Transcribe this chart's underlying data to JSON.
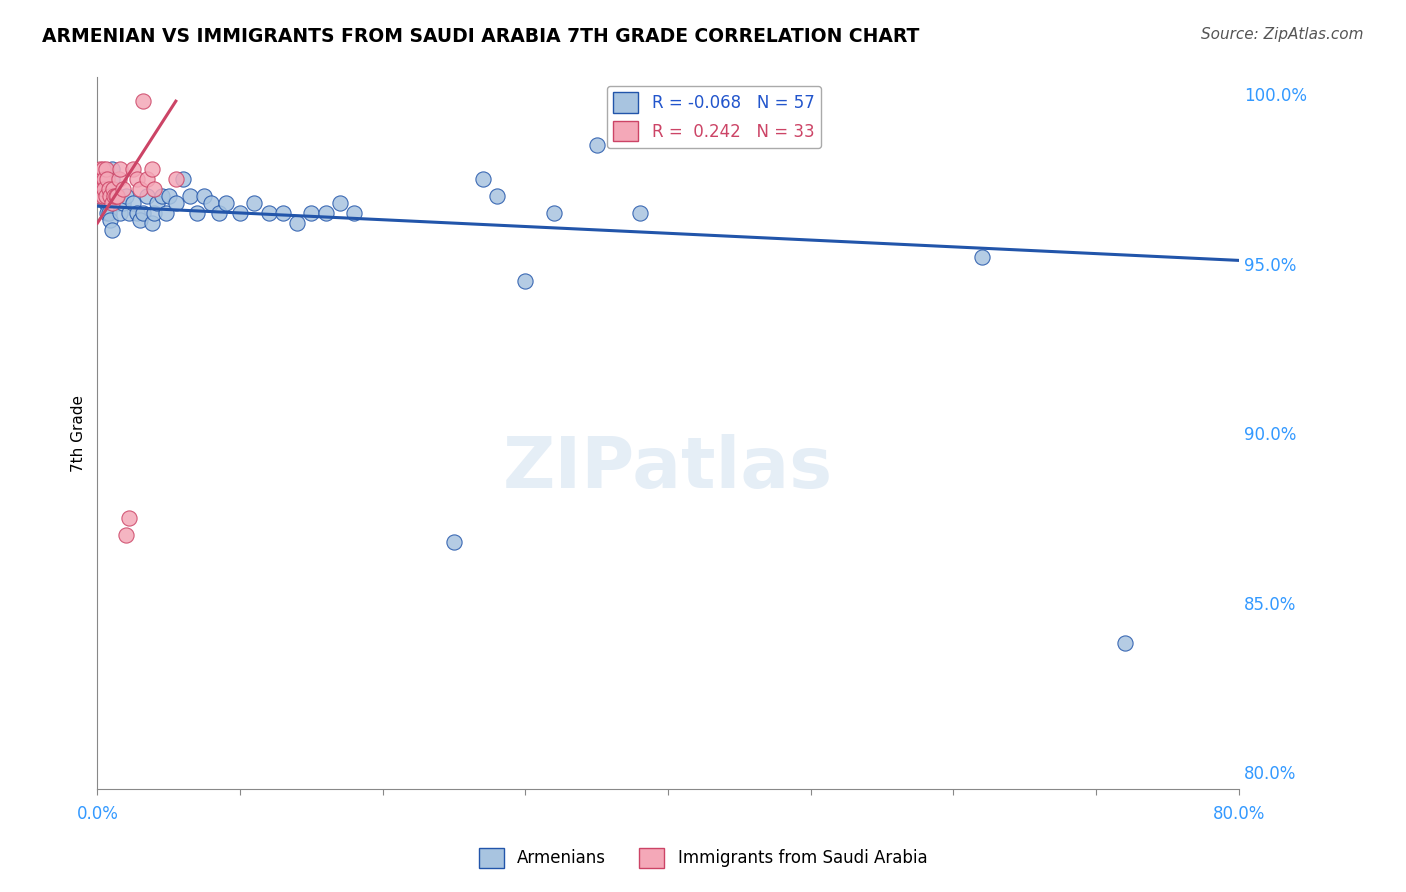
{
  "title": "ARMENIAN VS IMMIGRANTS FROM SAUDI ARABIA 7TH GRADE CORRELATION CHART",
  "source_text": "Source: ZipAtlas.com",
  "ylabel": "7th Grade",
  "watermark": "ZIPatlas",
  "legend_blue_r": "-0.068",
  "legend_blue_n": "57",
  "legend_pink_r": "0.242",
  "legend_pink_n": "33",
  "legend_blue_label": "Armenians",
  "legend_pink_label": "Immigrants from Saudi Arabia",
  "blue_color": "#a8c4e0",
  "pink_color": "#f4a8b8",
  "blue_edge_color": "#2255aa",
  "pink_edge_color": "#cc4466",
  "blue_line_color": "#2255aa",
  "pink_line_color": "#cc4466",
  "blue_r_color": "#2255cc",
  "pink_r_color": "#cc4466",
  "axis_color": "#3399ff",
  "grid_color": "#cccccc",
  "background_color": "#ffffff",
  "x_min": 0.0,
  "x_max": 0.8,
  "y_min": 0.795,
  "y_max": 1.005,
  "blue_scatter_x": [
    0.002,
    0.003,
    0.004,
    0.005,
    0.005,
    0.006,
    0.007,
    0.008,
    0.009,
    0.01,
    0.01,
    0.01,
    0.011,
    0.013,
    0.013,
    0.015,
    0.016,
    0.018,
    0.02,
    0.022,
    0.025,
    0.028,
    0.03,
    0.032,
    0.035,
    0.038,
    0.04,
    0.042,
    0.045,
    0.048,
    0.05,
    0.055,
    0.06,
    0.065,
    0.07,
    0.075,
    0.08,
    0.085,
    0.09,
    0.1,
    0.11,
    0.12,
    0.13,
    0.14,
    0.15,
    0.16,
    0.17,
    0.18,
    0.25,
    0.27,
    0.28,
    0.3,
    0.32,
    0.35,
    0.38,
    0.62,
    0.72
  ],
  "blue_scatter_y": [
    0.97,
    0.97,
    0.975,
    0.972,
    0.975,
    0.968,
    0.965,
    0.965,
    0.963,
    0.96,
    0.975,
    0.978,
    0.968,
    0.97,
    0.97,
    0.968,
    0.965,
    0.968,
    0.97,
    0.965,
    0.968,
    0.965,
    0.963,
    0.965,
    0.97,
    0.962,
    0.965,
    0.968,
    0.97,
    0.965,
    0.97,
    0.968,
    0.975,
    0.97,
    0.965,
    0.97,
    0.968,
    0.965,
    0.968,
    0.965,
    0.968,
    0.965,
    0.965,
    0.962,
    0.965,
    0.965,
    0.968,
    0.965,
    0.868,
    0.975,
    0.97,
    0.945,
    0.965,
    0.985,
    0.965,
    0.952,
    0.838
  ],
  "pink_scatter_x": [
    0.001,
    0.001,
    0.002,
    0.002,
    0.003,
    0.003,
    0.004,
    0.004,
    0.005,
    0.005,
    0.006,
    0.006,
    0.007,
    0.008,
    0.009,
    0.01,
    0.011,
    0.012,
    0.013,
    0.014,
    0.015,
    0.016,
    0.018,
    0.02,
    0.022,
    0.025,
    0.028,
    0.03,
    0.032,
    0.035,
    0.038,
    0.04,
    0.055
  ],
  "pink_scatter_y": [
    0.975,
    0.972,
    0.978,
    0.97,
    0.975,
    0.972,
    0.978,
    0.97,
    0.975,
    0.972,
    0.978,
    0.97,
    0.975,
    0.972,
    0.97,
    0.968,
    0.972,
    0.97,
    0.97,
    0.97,
    0.975,
    0.978,
    0.972,
    0.87,
    0.875,
    0.978,
    0.975,
    0.972,
    0.998,
    0.975,
    0.978,
    0.972,
    0.975
  ],
  "blue_trendline_x": [
    0.0,
    0.8
  ],
  "blue_trendline_y": [
    0.967,
    0.951
  ],
  "pink_trendline_x": [
    0.0,
    0.055
  ],
  "pink_trendline_y": [
    0.962,
    0.998
  ],
  "yticks": [
    0.8,
    0.85,
    0.9,
    0.95,
    1.0
  ],
  "ytick_labels": [
    "80.0%",
    "85.0%",
    "90.0%",
    "95.0%",
    "100.0%"
  ]
}
